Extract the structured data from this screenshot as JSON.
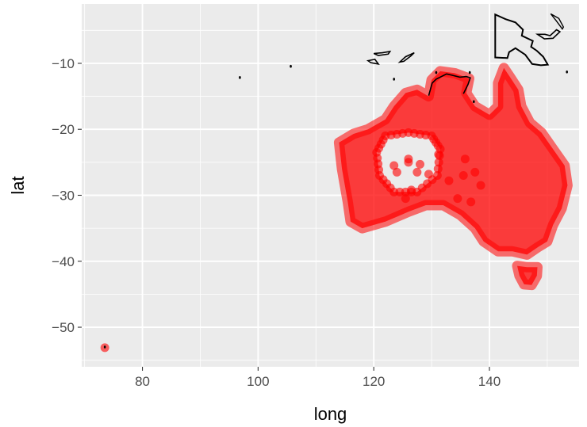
{
  "chart_data": {
    "type": "scatter",
    "xlabel": "long",
    "ylabel": "lat",
    "xlim": [
      69.5,
      155.5
    ],
    "ylim": [
      -56,
      -1
    ],
    "x_ticks": [
      80,
      100,
      120,
      140
    ],
    "y_ticks": [
      -10,
      -20,
      -30,
      -40,
      -50
    ],
    "x_tick_labels": [
      "80",
      "100",
      "120",
      "140"
    ],
    "y_tick_labels": [
      "−10",
      "−20",
      "−30",
      "−40",
      "−50"
    ],
    "grid": true,
    "legend": "none",
    "colors": {
      "panel": "#ebebeb",
      "grid": "#ffffff",
      "points": "#ff0000",
      "outline": "#000000",
      "tick_text": "#4d4d4d",
      "tick_mark": "#333333"
    },
    "series": [
      {
        "kind": "points",
        "cluster_fill": "#ff0000",
        "mainland_points_lonlat": [
          [
            114,
            -22
          ],
          [
            114.5,
            -26
          ],
          [
            115.5,
            -31
          ],
          [
            116,
            -34
          ],
          [
            118,
            -35
          ],
          [
            122,
            -34
          ],
          [
            126,
            -32.5
          ],
          [
            129,
            -31.5
          ],
          [
            132,
            -31.5
          ],
          [
            135,
            -33
          ],
          [
            137.5,
            -35
          ],
          [
            139,
            -37
          ],
          [
            141.5,
            -38.5
          ],
          [
            144,
            -38.5
          ],
          [
            146.5,
            -39
          ],
          [
            148.5,
            -37.8
          ],
          [
            150,
            -37
          ],
          [
            151,
            -34.5
          ],
          [
            152.5,
            -32
          ],
          [
            153.5,
            -28.5
          ],
          [
            153,
            -25.5
          ],
          [
            151,
            -23
          ],
          [
            149,
            -20.5
          ],
          [
            147,
            -19
          ],
          [
            145.5,
            -16.5
          ],
          [
            145,
            -14
          ],
          [
            143.5,
            -12
          ],
          [
            142.5,
            -10.7
          ],
          [
            141.5,
            -13
          ],
          [
            141.5,
            -16.5
          ],
          [
            140,
            -17.8
          ],
          [
            137.5,
            -16.5
          ],
          [
            136,
            -14.5
          ],
          [
            136.5,
            -12.3
          ],
          [
            134,
            -11.5
          ],
          [
            131.5,
            -11.2
          ],
          [
            130,
            -12.5
          ],
          [
            129.5,
            -15
          ],
          [
            127.5,
            -14
          ],
          [
            125.5,
            -14.5
          ],
          [
            123.5,
            -16.5
          ],
          [
            122,
            -18.5
          ],
          [
            119,
            -20
          ],
          [
            116.5,
            -20.7
          ],
          [
            114,
            -22
          ]
        ],
        "tasmania_points_lonlat": [
          [
            144.8,
            -40.7
          ],
          [
            146.5,
            -40.9
          ],
          [
            148.3,
            -40.9
          ],
          [
            148.2,
            -42.2
          ],
          [
            147.3,
            -43.6
          ],
          [
            146,
            -43.5
          ],
          [
            145.2,
            -42.2
          ],
          [
            144.8,
            -40.7
          ]
        ],
        "lake_gap_points_lonlat": [
          [
            122,
            -21
          ],
          [
            126,
            -20.5
          ],
          [
            130,
            -21
          ],
          [
            131.5,
            -23
          ],
          [
            131,
            -27
          ],
          [
            127.5,
            -29.5
          ],
          [
            123.5,
            -29.5
          ],
          [
            121,
            -27
          ],
          [
            120.5,
            -23.5
          ],
          [
            122,
            -21
          ]
        ],
        "scattered_points_lonlat": [
          [
            125.5,
            -30.5
          ],
          [
            126.5,
            -29.2
          ],
          [
            124,
            -26.5
          ],
          [
            126,
            -25
          ],
          [
            128,
            -25.3
          ],
          [
            129.5,
            -26.8
          ],
          [
            131.2,
            -23.8
          ],
          [
            126,
            -24.5
          ],
          [
            127.5,
            -26.5
          ],
          [
            123.5,
            -25.5
          ],
          [
            135.5,
            -27
          ],
          [
            137.5,
            -26.5
          ],
          [
            135.8,
            -24.5
          ],
          [
            134.5,
            -30.5
          ],
          [
            138.5,
            -28.5
          ],
          [
            133,
            -27.8
          ],
          [
            136.8,
            -31
          ]
        ],
        "outlier_points_lonlat": [
          [
            73.5,
            -53.1
          ]
        ]
      },
      {
        "kind": "outline",
        "png_lonlat": [
          [
            141,
            -2.6
          ],
          [
            142.8,
            -3.3
          ],
          [
            144.5,
            -3.8
          ],
          [
            145.8,
            -4.9
          ],
          [
            145.6,
            -5.8
          ],
          [
            147.5,
            -6.6
          ],
          [
            147.2,
            -7.5
          ],
          [
            148.2,
            -8.1
          ],
          [
            149.3,
            -9.0
          ],
          [
            150.1,
            -10.2
          ],
          [
            148.9,
            -10.3
          ],
          [
            147.4,
            -10.1
          ],
          [
            146.2,
            -8.7
          ],
          [
            144.5,
            -7.7
          ],
          [
            143.4,
            -8.3
          ],
          [
            143.1,
            -9.2
          ],
          [
            141,
            -9.1
          ],
          [
            141,
            -2.6
          ]
        ],
        "new_britain_lonlat": [
          [
            148.3,
            -5.6
          ],
          [
            149.6,
            -5.6
          ],
          [
            150.5,
            -5.8
          ],
          [
            151.6,
            -4.9
          ],
          [
            152.2,
            -5.2
          ],
          [
            151.0,
            -6.2
          ],
          [
            149.5,
            -6.3
          ],
          [
            148.3,
            -5.6
          ]
        ],
        "new_ireland_lonlat": [
          [
            150.6,
            -2.5
          ],
          [
            152.0,
            -3.2
          ],
          [
            152.8,
            -4.5
          ],
          [
            152.6,
            -4.8
          ],
          [
            151.6,
            -3.6
          ],
          [
            150.6,
            -2.5
          ]
        ],
        "timor_lonlat": [
          [
            124.5,
            -9.8
          ],
          [
            125.5,
            -9.0
          ],
          [
            127.0,
            -8.4
          ],
          [
            126.4,
            -8.9
          ],
          [
            125.2,
            -9.7
          ],
          [
            124.5,
            -9.8
          ]
        ],
        "sumba_lonlat": [
          [
            119.0,
            -9.6
          ],
          [
            120.2,
            -9.4
          ],
          [
            120.8,
            -10.1
          ],
          [
            119.5,
            -9.9
          ],
          [
            119.0,
            -9.6
          ]
        ],
        "flores_lonlat": [
          [
            120.0,
            -8.5
          ],
          [
            121.5,
            -8.4
          ],
          [
            122.8,
            -8.2
          ],
          [
            122.5,
            -8.6
          ],
          [
            120.8,
            -8.8
          ],
          [
            120.0,
            -8.5
          ]
        ],
        "small_marks_lonlat": [
          [
            96.85,
            -12.15
          ],
          [
            105.65,
            -10.45
          ],
          [
            123.5,
            -12.4
          ],
          [
            153.4,
            -11.3
          ],
          [
            136.6,
            -11.4
          ],
          [
            130.8,
            -11.4
          ],
          [
            137.3,
            -15.8
          ],
          [
            73.5,
            -53.0
          ]
        ],
        "aus_north_edge_lonlat": [
          [
            129.5,
            -14.9
          ],
          [
            130.1,
            -13.0
          ],
          [
            130.8,
            -12.4
          ],
          [
            132.6,
            -11.6
          ],
          [
            133.5,
            -11.8
          ],
          [
            134.9,
            -12.1
          ],
          [
            136.0,
            -12.0
          ],
          [
            136.7,
            -12.2
          ],
          [
            136.3,
            -13.2
          ],
          [
            135.5,
            -14.6
          ]
        ]
      }
    ]
  }
}
